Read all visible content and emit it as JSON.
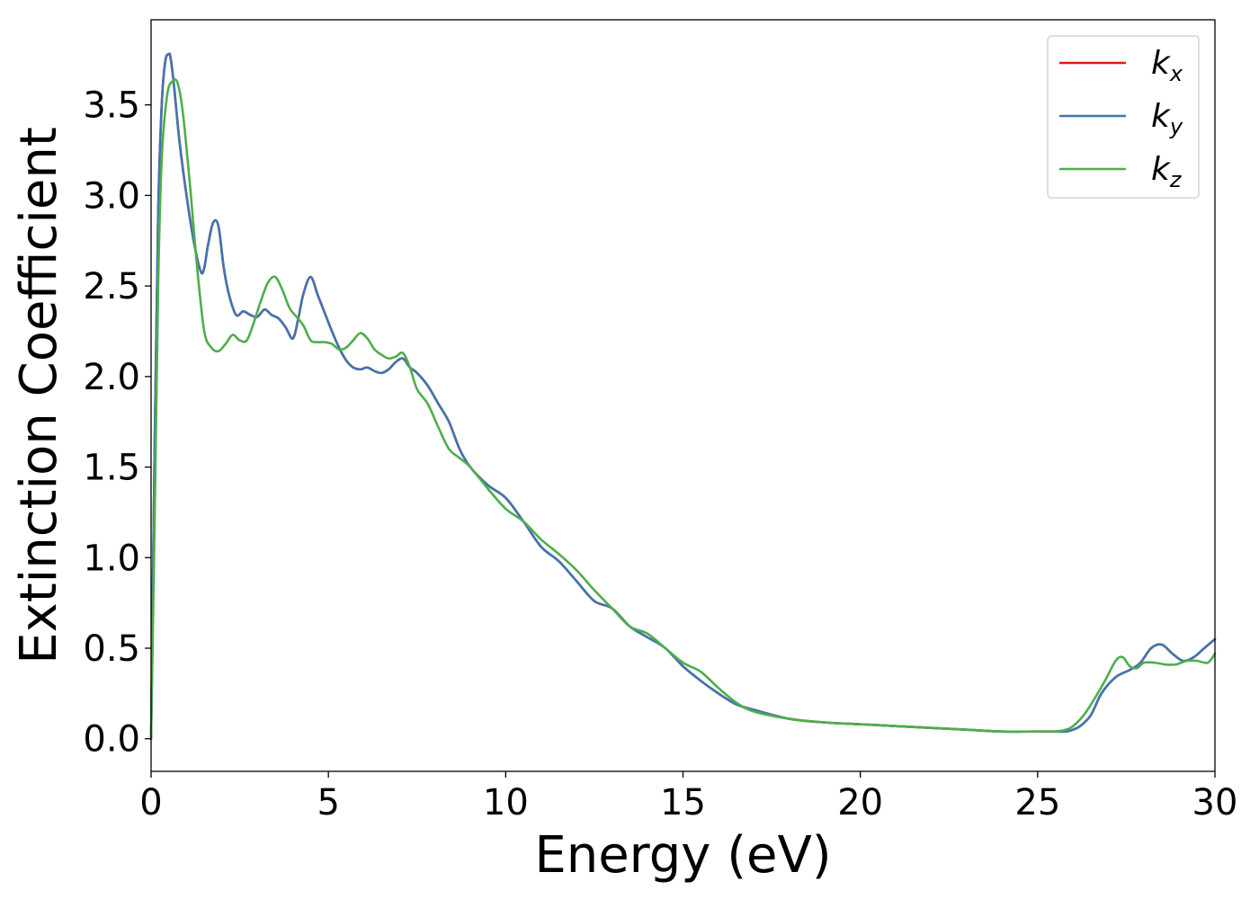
{
  "chart_data": {
    "type": "line",
    "title": "",
    "xlabel": "Energy (eV)",
    "ylabel": "Extinction Coefficient",
    "xlim": [
      0,
      30
    ],
    "ylim": [
      -0.18,
      3.97
    ],
    "xticks": [
      0,
      5,
      10,
      15,
      20,
      25,
      30
    ],
    "yticks": [
      0.0,
      0.5,
      1.0,
      1.5,
      2.0,
      2.5,
      3.0,
      3.5
    ],
    "xtick_labels": [
      "0",
      "5",
      "10",
      "15",
      "20",
      "25",
      "30"
    ],
    "ytick_labels": [
      "0.0",
      "0.5",
      "1.0",
      "1.5",
      "2.0",
      "2.5",
      "3.0",
      "3.5"
    ],
    "grid": false,
    "legend_position": "upper-right",
    "series": [
      {
        "name": "k_x",
        "label_base": "k",
        "label_sub": "x",
        "color": "#e41a1c",
        "x": [
          0,
          0.1,
          0.2,
          0.3,
          0.4,
          0.5,
          0.55,
          0.65,
          0.8,
          1.0,
          1.2,
          1.4,
          1.5,
          1.6,
          1.75,
          1.9,
          2.05,
          2.2,
          2.4,
          2.6,
          2.8,
          3.0,
          3.2,
          3.4,
          3.6,
          3.8,
          4.0,
          4.15,
          4.3,
          4.5,
          4.7,
          4.9,
          5.1,
          5.3,
          5.5,
          5.7,
          5.9,
          6.1,
          6.3,
          6.5,
          6.7,
          6.9,
          7.1,
          7.3,
          7.5,
          7.8,
          8.1,
          8.4,
          8.7,
          9.0,
          9.5,
          10.0,
          10.5,
          11.0,
          11.5,
          12.0,
          12.5,
          13.0,
          13.5,
          14.0,
          14.5,
          15.0,
          15.5,
          16.0,
          16.5,
          17.0,
          18.0,
          19.0,
          20.0,
          21.0,
          22.0,
          23.0,
          24.0,
          25.0,
          25.5,
          25.8,
          26.0,
          26.2,
          26.5,
          26.8,
          27.2,
          27.6,
          27.9,
          28.2,
          28.5,
          28.8,
          29.1,
          29.4,
          29.7,
          30.0
        ],
        "values": [
          0.0,
          1.6,
          2.9,
          3.5,
          3.74,
          3.78,
          3.76,
          3.6,
          3.3,
          3.0,
          2.75,
          2.58,
          2.6,
          2.72,
          2.85,
          2.83,
          2.6,
          2.45,
          2.34,
          2.36,
          2.34,
          2.33,
          2.37,
          2.34,
          2.32,
          2.27,
          2.21,
          2.32,
          2.46,
          2.55,
          2.45,
          2.35,
          2.25,
          2.16,
          2.09,
          2.05,
          2.04,
          2.05,
          2.03,
          2.02,
          2.04,
          2.08,
          2.1,
          2.05,
          2.02,
          1.95,
          1.85,
          1.75,
          1.6,
          1.5,
          1.4,
          1.33,
          1.2,
          1.06,
          0.98,
          0.87,
          0.76,
          0.72,
          0.62,
          0.56,
          0.5,
          0.4,
          0.32,
          0.25,
          0.19,
          0.16,
          0.11,
          0.09,
          0.08,
          0.07,
          0.06,
          0.05,
          0.04,
          0.04,
          0.04,
          0.04,
          0.05,
          0.07,
          0.13,
          0.25,
          0.34,
          0.38,
          0.42,
          0.5,
          0.52,
          0.47,
          0.43,
          0.45,
          0.5,
          0.55
        ]
      },
      {
        "name": "k_y",
        "label_base": "k",
        "label_sub": "y",
        "color": "#4075b0",
        "x": [
          0,
          0.1,
          0.2,
          0.3,
          0.4,
          0.5,
          0.55,
          0.65,
          0.8,
          1.0,
          1.2,
          1.4,
          1.5,
          1.6,
          1.75,
          1.9,
          2.05,
          2.2,
          2.4,
          2.6,
          2.8,
          3.0,
          3.2,
          3.4,
          3.6,
          3.8,
          4.0,
          4.15,
          4.3,
          4.5,
          4.7,
          4.9,
          5.1,
          5.3,
          5.5,
          5.7,
          5.9,
          6.1,
          6.3,
          6.5,
          6.7,
          6.9,
          7.1,
          7.3,
          7.5,
          7.8,
          8.1,
          8.4,
          8.7,
          9.0,
          9.5,
          10.0,
          10.5,
          11.0,
          11.5,
          12.0,
          12.5,
          13.0,
          13.5,
          14.0,
          14.5,
          15.0,
          15.5,
          16.0,
          16.5,
          17.0,
          18.0,
          19.0,
          20.0,
          21.0,
          22.0,
          23.0,
          24.0,
          25.0,
          25.5,
          25.8,
          26.0,
          26.2,
          26.5,
          26.8,
          27.2,
          27.6,
          27.9,
          28.2,
          28.5,
          28.8,
          29.1,
          29.4,
          29.7,
          30.0
        ],
        "values": [
          0.0,
          1.6,
          2.9,
          3.5,
          3.74,
          3.78,
          3.76,
          3.6,
          3.3,
          3.0,
          2.75,
          2.58,
          2.6,
          2.72,
          2.85,
          2.83,
          2.6,
          2.45,
          2.34,
          2.36,
          2.34,
          2.33,
          2.37,
          2.34,
          2.32,
          2.27,
          2.21,
          2.32,
          2.46,
          2.55,
          2.45,
          2.35,
          2.25,
          2.16,
          2.09,
          2.05,
          2.04,
          2.05,
          2.03,
          2.02,
          2.04,
          2.08,
          2.1,
          2.05,
          2.02,
          1.95,
          1.85,
          1.75,
          1.6,
          1.5,
          1.4,
          1.33,
          1.2,
          1.06,
          0.98,
          0.87,
          0.76,
          0.72,
          0.62,
          0.56,
          0.5,
          0.4,
          0.32,
          0.25,
          0.19,
          0.16,
          0.11,
          0.09,
          0.08,
          0.07,
          0.06,
          0.05,
          0.04,
          0.04,
          0.04,
          0.04,
          0.05,
          0.07,
          0.13,
          0.25,
          0.34,
          0.38,
          0.42,
          0.5,
          0.52,
          0.47,
          0.43,
          0.45,
          0.5,
          0.55
        ]
      },
      {
        "name": "k_z",
        "label_base": "k",
        "label_sub": "z",
        "color": "#4daf4a",
        "x": [
          0,
          0.1,
          0.2,
          0.3,
          0.45,
          0.6,
          0.75,
          0.9,
          1.1,
          1.3,
          1.5,
          1.7,
          1.9,
          2.1,
          2.3,
          2.5,
          2.7,
          2.9,
          3.1,
          3.3,
          3.5,
          3.7,
          3.9,
          4.1,
          4.3,
          4.5,
          4.7,
          4.9,
          5.1,
          5.3,
          5.5,
          5.7,
          5.9,
          6.1,
          6.3,
          6.5,
          6.7,
          6.9,
          7.1,
          7.3,
          7.5,
          7.8,
          8.1,
          8.4,
          8.7,
          9.0,
          9.5,
          10.0,
          10.5,
          11.0,
          11.5,
          12.0,
          12.5,
          13.0,
          13.5,
          14.0,
          14.5,
          15.0,
          15.5,
          16.0,
          16.5,
          17.0,
          18.0,
          19.0,
          20.0,
          21.0,
          22.0,
          23.0,
          24.0,
          25.0,
          25.5,
          25.8,
          26.0,
          26.3,
          26.6,
          26.9,
          27.2,
          27.4,
          27.6,
          27.8,
          28.0,
          28.3,
          28.6,
          28.9,
          29.2,
          29.5,
          29.8,
          30.0
        ],
        "values": [
          0.0,
          1.2,
          2.5,
          3.2,
          3.55,
          3.63,
          3.62,
          3.45,
          3.05,
          2.6,
          2.25,
          2.16,
          2.14,
          2.18,
          2.23,
          2.2,
          2.2,
          2.3,
          2.42,
          2.52,
          2.55,
          2.48,
          2.38,
          2.33,
          2.28,
          2.2,
          2.19,
          2.19,
          2.18,
          2.15,
          2.16,
          2.2,
          2.24,
          2.21,
          2.15,
          2.12,
          2.1,
          2.11,
          2.13,
          2.05,
          1.93,
          1.85,
          1.72,
          1.6,
          1.55,
          1.5,
          1.38,
          1.27,
          1.2,
          1.1,
          1.02,
          0.93,
          0.82,
          0.72,
          0.62,
          0.58,
          0.5,
          0.42,
          0.37,
          0.28,
          0.2,
          0.15,
          0.11,
          0.09,
          0.08,
          0.07,
          0.06,
          0.05,
          0.04,
          0.04,
          0.04,
          0.05,
          0.07,
          0.13,
          0.22,
          0.32,
          0.43,
          0.45,
          0.4,
          0.39,
          0.42,
          0.42,
          0.41,
          0.41,
          0.43,
          0.43,
          0.42,
          0.47
        ]
      }
    ]
  }
}
